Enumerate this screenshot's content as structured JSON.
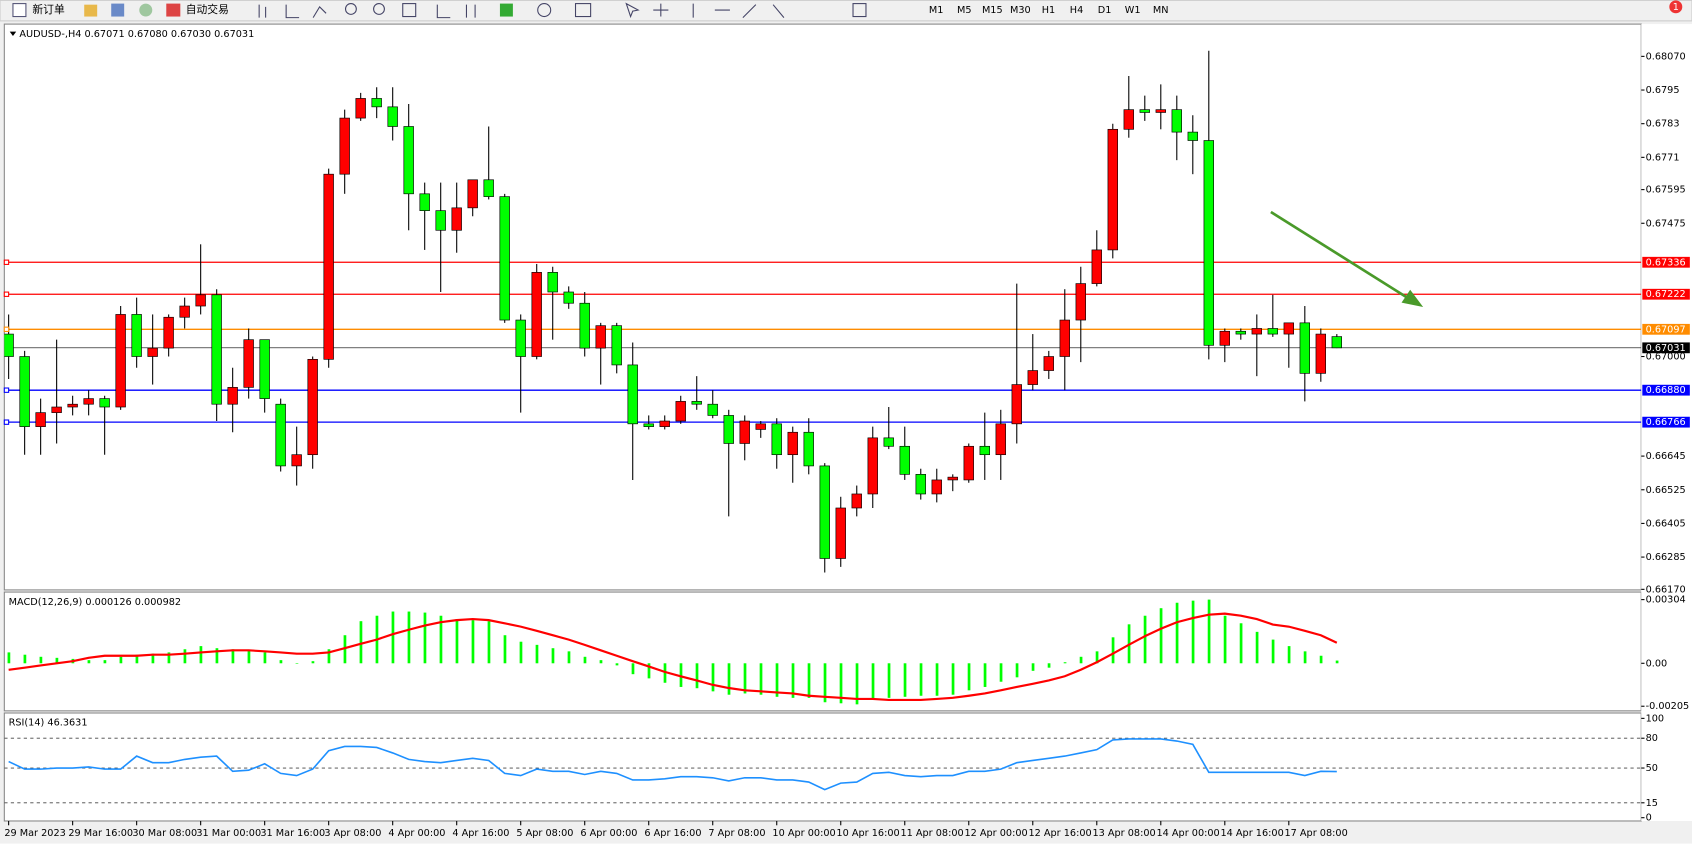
{
  "toolbar": {
    "buttons": [
      "新订单",
      "自动交易"
    ],
    "timeframes": [
      "M1",
      "M5",
      "M15",
      "M30",
      "H1",
      "H4",
      "D1",
      "W1",
      "MN"
    ],
    "notification": "1"
  },
  "chart_data": [
    {
      "type": "candlestick",
      "title": "AUDUSD-,H4  0.67071 0.67080 0.67030 0.67031",
      "bull_color": "#ff0000",
      "bear_color": "#00ff00",
      "current_price_color": "#000000",
      "categories": [
        "29 Mar 2023",
        null,
        null,
        null,
        "29 Mar 16:00",
        null,
        null,
        null,
        "30 Mar 08:00",
        null,
        null,
        null,
        "31 Mar 00:00",
        null,
        null,
        null,
        "31 Mar 16:00",
        null,
        null,
        null,
        "3 Apr 08:00",
        null,
        null,
        null,
        "4 Apr 00:00",
        null,
        null,
        null,
        "4 Apr 16:00",
        null,
        null,
        null,
        "5 Apr 08:00",
        null,
        null,
        null,
        "6 Apr 00:00",
        null,
        null,
        null,
        "6 Apr 16:00",
        null,
        null,
        null,
        "7 Apr 08:00",
        null,
        null,
        null,
        "10 Apr 00:00",
        null,
        null,
        null,
        "10 Apr 16:00",
        null,
        null,
        null,
        "11 Apr 08:00",
        null,
        null,
        null,
        "12 Apr 00:00",
        null,
        null,
        null,
        "12 Apr 16:00",
        null,
        null,
        null,
        "13 Apr 08:00",
        null,
        null,
        null,
        "14 Apr 00:00",
        null,
        null,
        null,
        "14 Apr 16:00",
        null,
        null,
        null,
        "17 Apr 08:00",
        null,
        null,
        null
      ],
      "candles": [
        [
          0.6708,
          0.6715,
          0.6692,
          0.67
        ],
        [
          0.67,
          0.6702,
          0.6665,
          0.6675
        ],
        [
          0.6675,
          0.6685,
          0.6665,
          0.668
        ],
        [
          0.668,
          0.6706,
          0.6669,
          0.6682
        ],
        [
          0.6682,
          0.6686,
          0.6679,
          0.6683
        ],
        [
          0.6683,
          0.6688,
          0.6679,
          0.6685
        ],
        [
          0.6685,
          0.6686,
          0.6665,
          0.6682
        ],
        [
          0.6682,
          0.6718,
          0.6681,
          0.6715
        ],
        [
          0.6715,
          0.6721,
          0.6696,
          0.67
        ],
        [
          0.67,
          0.6715,
          0.669,
          0.6703
        ],
        [
          0.6703,
          0.6715,
          0.67,
          0.6714
        ],
        [
          0.6714,
          0.6721,
          0.671,
          0.6718
        ],
        [
          0.6718,
          0.674,
          0.6715,
          0.6722
        ],
        [
          0.6722,
          0.6724,
          0.6677,
          0.6683
        ],
        [
          0.6683,
          0.6696,
          0.6673,
          0.6689
        ],
        [
          0.6689,
          0.671,
          0.6685,
          0.6706
        ],
        [
          0.6706,
          0.6706,
          0.668,
          0.6685
        ],
        [
          0.6683,
          0.6685,
          0.6659,
          0.6661
        ],
        [
          0.6661,
          0.6675,
          0.6654,
          0.6665
        ],
        [
          0.6665,
          0.67,
          0.666,
          0.6699
        ],
        [
          0.6699,
          0.6767,
          0.6696,
          0.6765
        ],
        [
          0.6765,
          0.6788,
          0.6758,
          0.6785
        ],
        [
          0.6785,
          0.6794,
          0.6784,
          0.6792
        ],
        [
          0.6792,
          0.6796,
          0.6785,
          0.6789
        ],
        [
          0.6789,
          0.6796,
          0.6777,
          0.6782
        ],
        [
          0.6782,
          0.679,
          0.6745,
          0.6758
        ],
        [
          0.6758,
          0.6762,
          0.6738,
          0.6752
        ],
        [
          0.6752,
          0.6762,
          0.6723,
          0.6745
        ],
        [
          0.6745,
          0.6762,
          0.6737,
          0.6753
        ],
        [
          0.6753,
          0.6763,
          0.675,
          0.6763
        ],
        [
          0.6763,
          0.6782,
          0.6756,
          0.6757
        ],
        [
          0.6757,
          0.6758,
          0.6712,
          0.6713
        ],
        [
          0.6713,
          0.6715,
          0.668,
          0.67
        ],
        [
          0.67,
          0.6733,
          0.6699,
          0.673
        ],
        [
          0.673,
          0.6732,
          0.6706,
          0.6723
        ],
        [
          0.6723,
          0.6725,
          0.6717,
          0.6719
        ],
        [
          0.6719,
          0.6723,
          0.67,
          0.6703
        ],
        [
          0.6703,
          0.6712,
          0.669,
          0.6711
        ],
        [
          0.6711,
          0.6712,
          0.6694,
          0.6697
        ],
        [
          0.6697,
          0.6705,
          0.6656,
          0.6676
        ],
        [
          0.6676,
          0.6679,
          0.6674,
          0.6675
        ],
        [
          0.6675,
          0.6679,
          0.6674,
          0.6677
        ],
        [
          0.6677,
          0.6686,
          0.6676,
          0.6684
        ],
        [
          0.6684,
          0.6693,
          0.6681,
          0.6683
        ],
        [
          0.6683,
          0.6688,
          0.6678,
          0.6679
        ],
        [
          0.6679,
          0.6681,
          0.6643,
          0.6669
        ],
        [
          0.6669,
          0.6679,
          0.6663,
          0.6677
        ],
        [
          0.6674,
          0.6677,
          0.6671,
          0.6676
        ],
        [
          0.6676,
          0.6678,
          0.666,
          0.6665
        ],
        [
          0.6665,
          0.6675,
          0.6655,
          0.6673
        ],
        [
          0.6673,
          0.6678,
          0.6658,
          0.6661
        ],
        [
          0.6661,
          0.6662,
          0.6623,
          0.6628
        ],
        [
          0.6628,
          0.665,
          0.6625,
          0.6646
        ],
        [
          0.6646,
          0.6654,
          0.6643,
          0.6651
        ],
        [
          0.6651,
          0.6675,
          0.6646,
          0.6671
        ],
        [
          0.6671,
          0.6682,
          0.6667,
          0.6668
        ],
        [
          0.6668,
          0.6675,
          0.6656,
          0.6658
        ],
        [
          0.6658,
          0.666,
          0.6649,
          0.6651
        ],
        [
          0.6651,
          0.666,
          0.6648,
          0.6656
        ],
        [
          0.6656,
          0.6658,
          0.6652,
          0.6657
        ],
        [
          0.6656,
          0.6669,
          0.6655,
          0.6668
        ],
        [
          0.6668,
          0.668,
          0.6656,
          0.6665
        ],
        [
          0.6665,
          0.6681,
          0.6656,
          0.6676
        ],
        [
          0.6676,
          0.6726,
          0.6669,
          0.669
        ],
        [
          0.669,
          0.6708,
          0.6688,
          0.6695
        ],
        [
          0.6695,
          0.6702,
          0.6692,
          0.67
        ],
        [
          0.67,
          0.6724,
          0.6688,
          0.6713
        ],
        [
          0.6713,
          0.6732,
          0.6698,
          0.6726
        ],
        [
          0.6726,
          0.6745,
          0.6725,
          0.6738
        ],
        [
          0.6738,
          0.6783,
          0.6735,
          0.6781
        ],
        [
          0.6781,
          0.68,
          0.6778,
          0.6788
        ],
        [
          0.6788,
          0.6793,
          0.6784,
          0.6787
        ],
        [
          0.6787,
          0.6797,
          0.6781,
          0.6788
        ],
        [
          0.6788,
          0.6793,
          0.677,
          0.678
        ],
        [
          0.678,
          0.6786,
          0.6765,
          0.6777
        ],
        [
          0.6777,
          0.6809,
          0.6699,
          0.6704
        ],
        [
          0.6704,
          0.671,
          0.6698,
          0.6709
        ],
        [
          0.6709,
          0.671,
          0.6706,
          0.6708
        ],
        [
          0.6708,
          0.6715,
          0.6693,
          0.671
        ],
        [
          0.671,
          0.6722,
          0.6707,
          0.6708
        ],
        [
          0.6708,
          0.6712,
          0.6696,
          0.6712
        ],
        [
          0.6712,
          0.6718,
          0.6684,
          0.6694
        ],
        [
          0.6694,
          0.671,
          0.6691,
          0.6708
        ],
        [
          0.67071,
          0.6708,
          0.6703,
          0.67031
        ]
      ],
      "ylim": [
        0.66168,
        0.68185
      ],
      "yticks": [
        {
          "value": 0.6807,
          "label": "0.68070"
        },
        0.6795,
        0.6783,
        0.6771,
        0.67595,
        0.67475,
        {
          "value": 0.67,
          "label": "0.67000"
        },
        0.66645,
        0.66525,
        0.66405,
        0.66285,
        {
          "value": 0.6617,
          "label": "0.66170"
        }
      ],
      "levels": [
        {
          "value": 0.67336,
          "color": "#ff0000"
        },
        {
          "value": 0.67222,
          "color": "#ff0000"
        },
        {
          "value": 0.67097,
          "color": "#ff8c00"
        },
        {
          "value": 0.6688,
          "label": "0.66880",
          "color": "#0000ff"
        },
        {
          "value": 0.66766,
          "color": "#0000ff"
        }
      ]
    },
    {
      "type": "macd",
      "title": "MACD(12,26,9) 0.000126 0.000982",
      "series": [
        {
          "color": "#00ff00",
          "values": [
            0.00052,
            0.00041,
            0.00031,
            0.00026,
            0.00021,
            0.00015,
            0.00015,
            0.00031,
            0.00041,
            0.00046,
            0.00052,
            0.00067,
            0.00082,
            0.00072,
            0.00067,
            0.00062,
            0.00052,
            0.00015,
            0,
            0.0001,
            0.00067,
            0.00134,
            0.00201,
            0.00227,
            0.00247,
            0.00247,
            0.00242,
            0.00227,
            0.00211,
            0.00206,
            0.00201,
            0.00134,
            0.00103,
            0.00088,
            0.00072,
            0.00057,
            0.00031,
            0.00015,
            -0.0001,
            -0.00052,
            -0.00072,
            -0.00093,
            -0.00113,
            -0.00119,
            -0.00134,
            -0.0015,
            -0.00144,
            -0.0015,
            -0.0016,
            -0.00165,
            -0.00165,
            -0.00186,
            -0.00191,
            -0.00196,
            -0.00175,
            -0.00165,
            -0.0016,
            -0.00155,
            -0.00155,
            -0.0015,
            -0.00129,
            -0.00113,
            -0.00088,
            -0.00067,
            -0.00036,
            -0.00021,
            5e-05,
            0.00031,
            0.00057,
            0.00124,
            0.00186,
            0.00227,
            0.00263,
            0.00289,
            0.00299,
            0.00304,
            0.00227,
            0.00191,
            0.0015,
            0.00113,
            0.00082,
            0.00057,
            0.00036,
            0.00013
          ]
        },
        {
          "color": "#ff0000",
          "values": [
            -0.00031,
            -0.00021,
            -0.0001,
            0,
            0.0001,
            0.00026,
            0.00036,
            0.00036,
            0.00036,
            0.00041,
            0.00041,
            0.00046,
            0.00052,
            0.00057,
            0.00062,
            0.00062,
            0.00057,
            0.00052,
            0.00046,
            0.00046,
            0.00052,
            0.00072,
            0.00093,
            0.00113,
            0.00139,
            0.0016,
            0.0018,
            0.00196,
            0.00206,
            0.00211,
            0.00206,
            0.00191,
            0.00175,
            0.00155,
            0.00134,
            0.00113,
            0.00088,
            0.00062,
            0.00036,
            0.0001,
            -0.00015,
            -0.00041,
            -0.00062,
            -0.00082,
            -0.00103,
            -0.00118,
            -0.00129,
            -0.00134,
            -0.00139,
            -0.00144,
            -0.00155,
            -0.0016,
            -0.00165,
            -0.0017,
            -0.0017,
            -0.00175,
            -0.00175,
            -0.00175,
            -0.0017,
            -0.00165,
            -0.00155,
            -0.00144,
            -0.00129,
            -0.00113,
            -0.00098,
            -0.00082,
            -0.00062,
            -0.00031,
            5e-05,
            0.00046,
            0.00088,
            0.00129,
            0.00165,
            0.00196,
            0.00216,
            0.00232,
            0.00237,
            0.00227,
            0.00211,
            0.00185,
            0.00175,
            0.00155,
            0.00134,
            0.00098
          ]
        }
      ],
      "ylim": [
        -0.00227,
        0.0034
      ],
      "yticks": [
        0.00304,
        {
          "value": 0,
          "label": "0.00"
        },
        -0.00205
      ]
    },
    {
      "type": "rsi",
      "title": "RSI(14) 46.3631",
      "color": "#1e90ff",
      "values": [
        56.5,
        48.9,
        48.9,
        50.0,
        50.0,
        51.1,
        48.9,
        48.9,
        62.0,
        55.4,
        55.4,
        58.7,
        60.9,
        62.0,
        46.7,
        47.8,
        54.3,
        44.6,
        42.4,
        48.9,
        67.4,
        71.7,
        71.7,
        70.7,
        65.2,
        58.7,
        56.5,
        55.4,
        57.6,
        59.8,
        57.6,
        44.6,
        42.4,
        48.9,
        46.7,
        46.7,
        43.5,
        46.7,
        44.6,
        38.0,
        38.0,
        39.1,
        41.3,
        41.3,
        40.2,
        37.0,
        40.2,
        40.2,
        38.0,
        38.0,
        35.9,
        28.3,
        34.8,
        35.9,
        44.6,
        45.7,
        42.4,
        41.3,
        42.4,
        42.4,
        46.7,
        46.7,
        48.9,
        55.4,
        57.6,
        59.8,
        62.0,
        65.2,
        68.5,
        78.3,
        79.3,
        79.3,
        79.3,
        77.2,
        73.9,
        45.7,
        45.7,
        45.7,
        45.7,
        45.7,
        45.7,
        42.4,
        46.7,
        46.4
      ],
      "ylim": [
        -3.3,
        105.4
      ],
      "yticks": [
        100,
        80,
        50,
        15,
        0
      ],
      "levels": [
        80,
        50,
        15
      ]
    }
  ]
}
